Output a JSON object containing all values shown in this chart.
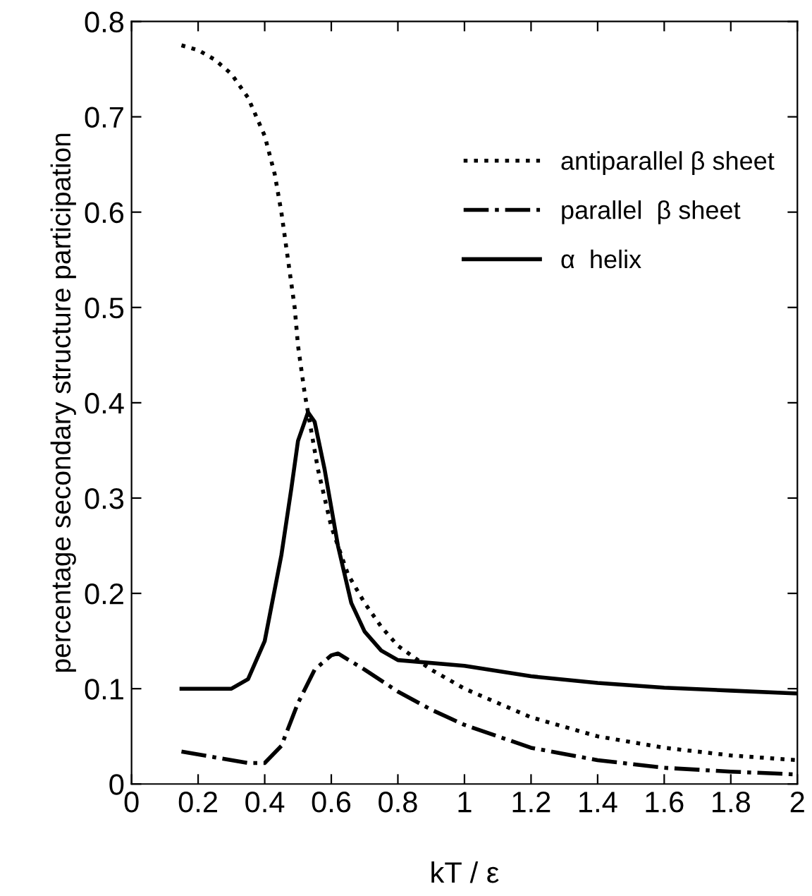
{
  "chart_data": {
    "type": "line",
    "xlabel": "kT / ε",
    "ylabel": "percentage secondary structure participation",
    "xlim": [
      0,
      2
    ],
    "ylim": [
      0,
      0.8
    ],
    "xticks": [
      0,
      0.2,
      0.4,
      0.6,
      0.8,
      1,
      1.2,
      1.4,
      1.6,
      1.8,
      2
    ],
    "yticks": [
      0,
      0.1,
      0.2,
      0.3,
      0.4,
      0.5,
      0.6,
      0.7,
      0.8
    ],
    "grid": false,
    "legend": "top right",
    "marker": "none",
    "series": [
      {
        "name": "antiparallel β sheet",
        "color": "#000000",
        "line_style": "dotted",
        "x": [
          0.15,
          0.2,
          0.25,
          0.3,
          0.35,
          0.4,
          0.43,
          0.45,
          0.47,
          0.49,
          0.5,
          0.52,
          0.54,
          0.56,
          0.6,
          0.65,
          0.7,
          0.75,
          0.8,
          0.9,
          1.0,
          1.1,
          1.2,
          1.4,
          1.6,
          1.8,
          2.0
        ],
        "values": [
          0.775,
          0.77,
          0.76,
          0.745,
          0.72,
          0.68,
          0.64,
          0.6,
          0.55,
          0.5,
          0.46,
          0.41,
          0.37,
          0.33,
          0.27,
          0.22,
          0.19,
          0.165,
          0.145,
          0.12,
          0.1,
          0.085,
          0.07,
          0.05,
          0.038,
          0.03,
          0.025
        ]
      },
      {
        "name": "parallel  β sheet",
        "color": "#000000",
        "line_style": "dashdot",
        "x": [
          0.15,
          0.25,
          0.35,
          0.4,
          0.45,
          0.5,
          0.55,
          0.6,
          0.62,
          0.7,
          0.8,
          0.9,
          1.0,
          1.2,
          1.4,
          1.6,
          1.8,
          2.0
        ],
        "values": [
          0.034,
          0.028,
          0.022,
          0.022,
          0.04,
          0.085,
          0.12,
          0.135,
          0.137,
          0.12,
          0.097,
          0.078,
          0.062,
          0.038,
          0.025,
          0.017,
          0.013,
          0.01
        ]
      },
      {
        "name": "α  helix",
        "color": "#000000",
        "line_style": "solid",
        "x": [
          0.15,
          0.3,
          0.35,
          0.4,
          0.45,
          0.48,
          0.5,
          0.53,
          0.55,
          0.58,
          0.62,
          0.66,
          0.7,
          0.75,
          0.8,
          1.0,
          1.2,
          1.4,
          1.6,
          1.8,
          2.0
        ],
        "values": [
          0.1,
          0.1,
          0.11,
          0.15,
          0.24,
          0.31,
          0.36,
          0.39,
          0.38,
          0.33,
          0.25,
          0.19,
          0.16,
          0.14,
          0.13,
          0.124,
          0.113,
          0.106,
          0.101,
          0.098,
          0.095
        ]
      }
    ]
  }
}
